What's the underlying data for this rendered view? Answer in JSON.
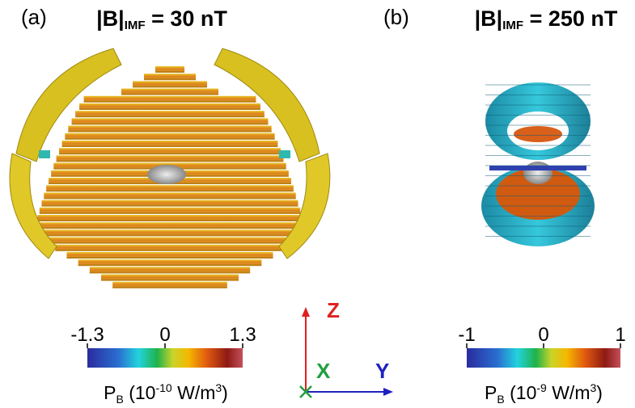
{
  "panels": [
    {
      "label": "(a)",
      "title": {
        "main": "|B|",
        "sub": "IMF",
        "rest": " = 30 nT"
      },
      "colorbar": {
        "lim": [
          -1.3,
          1.3
        ],
        "ticks": [
          -1.3,
          0,
          1.3
        ],
        "label": {
          "symbol": "P",
          "sub": "B",
          "pre": " (10",
          "exp": "-10",
          "unit": " W/m",
          "unit_exp": "3",
          "close": ")"
        }
      }
    },
    {
      "label": "(b)",
      "title": {
        "main": "|B|",
        "sub": "IMF",
        "rest": " = 250 nT"
      },
      "colorbar": {
        "lim": [
          -1,
          1
        ],
        "ticks": [
          -1,
          0,
          1
        ],
        "label": {
          "symbol": "P",
          "sub": "B",
          "pre": " (10",
          "exp": "-9",
          "unit": " W/m",
          "unit_exp": "3",
          "close": ")"
        }
      }
    }
  ],
  "axes": {
    "z": "Z",
    "x": "X",
    "y": "Y"
  }
}
